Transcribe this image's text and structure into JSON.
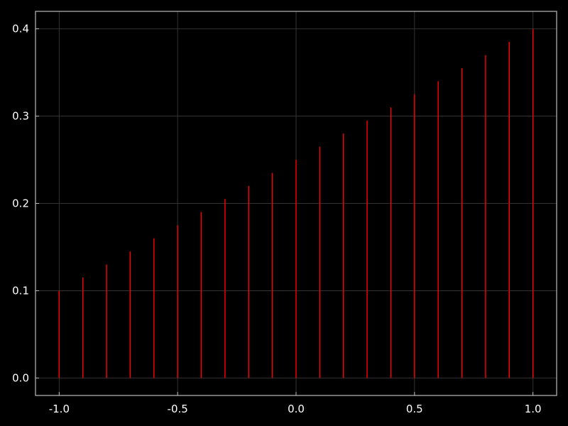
{
  "chart_data": {
    "type": "stem",
    "x": [
      -1.0,
      -0.9,
      -0.8,
      -0.7,
      -0.6,
      -0.5,
      -0.4,
      -0.3,
      -0.2,
      -0.1,
      0.0,
      0.1,
      0.2,
      0.3,
      0.4,
      0.5,
      0.6,
      0.7,
      0.8,
      0.9,
      1.0
    ],
    "series": [
      {
        "values": [
          0.1,
          0.115,
          0.13,
          0.145,
          0.16,
          0.175,
          0.19,
          0.205,
          0.22,
          0.235,
          0.25,
          0.265,
          0.28,
          0.295,
          0.31,
          0.325,
          0.34,
          0.355,
          0.37,
          0.385,
          0.4
        ],
        "color": "#ff0000"
      }
    ],
    "xlim": [
      -1.1,
      1.1
    ],
    "ylim": [
      -0.02,
      0.42
    ],
    "xticks": [
      -1.0,
      -0.5,
      0.0,
      0.5,
      1.0
    ],
    "xtick_labels": [
      "-1.0",
      "-0.5",
      "0.0",
      "0.5",
      "1.0"
    ],
    "yticks": [
      0.0,
      0.1,
      0.2,
      0.3,
      0.4
    ],
    "ytick_labels": [
      "0.0",
      "0.1",
      "0.2",
      "0.3",
      "0.4"
    ],
    "title": "",
    "xlabel": "",
    "ylabel": "",
    "grid": true,
    "legend": "none",
    "colors": {
      "background": "#000000",
      "frame": "#bbbbbb",
      "grid": "#333333",
      "text": "#ffffff",
      "stem": "#ff0000"
    }
  }
}
